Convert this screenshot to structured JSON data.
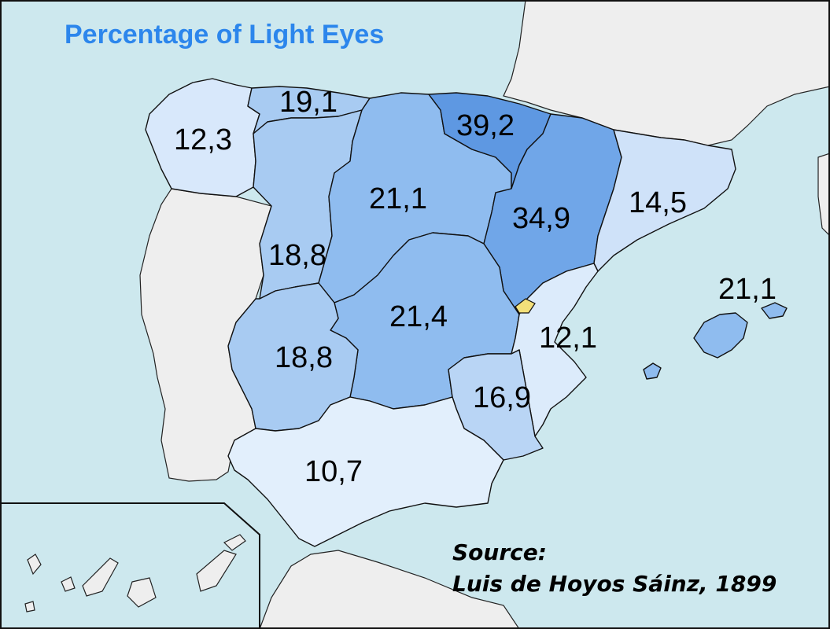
{
  "title": "Percentage of Light Eyes",
  "source": {
    "line1": "Source:",
    "line2": "Luis de Hoyos Sáinz, 1899"
  },
  "colors": {
    "sea": "#cde8ee",
    "land_other": "#eeeeee",
    "title": "#2c86ec",
    "highlight_enclave": "#f3e07a"
  },
  "regions": [
    {
      "id": "galicia",
      "value": "12,3",
      "value_num": 12.3,
      "color": "#d8e8fb"
    },
    {
      "id": "asturias",
      "value": "19,1",
      "value_num": 19.1,
      "color": "#a8cbf2"
    },
    {
      "id": "leon",
      "value": "18,8",
      "value_num": 18.8,
      "color": "#a8cbf2"
    },
    {
      "id": "old-castile",
      "value": "21,1",
      "value_num": 21.1,
      "color": "#8fbcef"
    },
    {
      "id": "basque-navarre",
      "value": "39,2",
      "value_num": 39.2,
      "color": "#5e98e2"
    },
    {
      "id": "aragon",
      "value": "34,9",
      "value_num": 34.9,
      "color": "#70a6e8"
    },
    {
      "id": "catalonia",
      "value": "14,5",
      "value_num": 14.5,
      "color": "#cfe2f9"
    },
    {
      "id": "balearic",
      "value": "21,1",
      "value_num": 21.1,
      "color": "#8fbcef"
    },
    {
      "id": "extremadura",
      "value": "18,8",
      "value_num": 18.8,
      "color": "#a8cbf2"
    },
    {
      "id": "new-castile",
      "value": "21,4",
      "value_num": 21.4,
      "color": "#8fbcef"
    },
    {
      "id": "valencia",
      "value": "12,1",
      "value_num": 12.1,
      "color": "#dcebfb"
    },
    {
      "id": "murcia",
      "value": "16,9",
      "value_num": 16.9,
      "color": "#b9d5f5"
    },
    {
      "id": "andalusia",
      "value": "10,7",
      "value_num": 10.7,
      "color": "#e2effc"
    }
  ]
}
